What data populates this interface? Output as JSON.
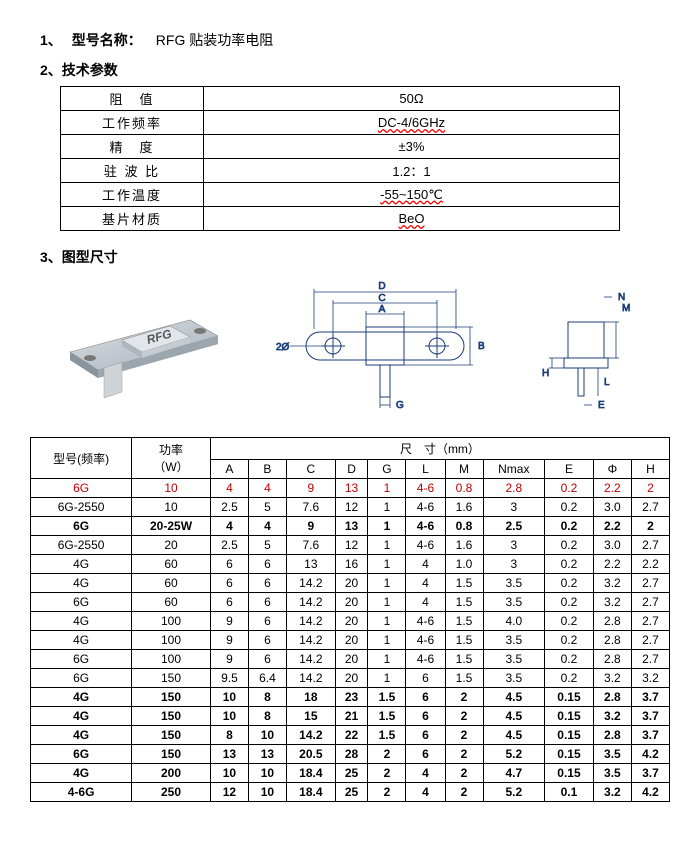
{
  "titles": {
    "s1_num": "1、",
    "s1_label": "型号名称：",
    "s1_value": "RFG 贴装功率电阻",
    "s2": "2、技术参数",
    "s3": "3、图型尺寸"
  },
  "spec": {
    "rows": [
      {
        "label": "阻　值",
        "value": "50Ω"
      },
      {
        "label": "工作频率",
        "value": "DC-4/6GHz",
        "wavy": true
      },
      {
        "label": "精　度",
        "value": "±3%"
      },
      {
        "label": "驻 波 比",
        "value": "1.2：1"
      },
      {
        "label": "工作温度",
        "value": "-55~150℃",
        "wavy": true
      },
      {
        "label": "基片材质",
        "value": "BeO",
        "wavy": true
      }
    ]
  },
  "diagram": {
    "logo": "RFG",
    "labels": {
      "A": "A",
      "B": "B",
      "C": "C",
      "D": "D",
      "G": "G",
      "L": "L",
      "M": "M",
      "N": "N",
      "E": "E",
      "H": "H",
      "phi": "2Ø"
    }
  },
  "dim": {
    "header": {
      "model": "型号(频率)",
      "power": "功率",
      "power_unit": "（W）",
      "dims": "尺　寸（mm）",
      "cols": [
        "A",
        "B",
        "C",
        "D",
        "G",
        "L",
        "M",
        "Nmax",
        "E",
        "Φ",
        "H"
      ]
    },
    "rows": [
      {
        "model": "6G",
        "power": "10",
        "vals": [
          "4",
          "4",
          "9",
          "13",
          "1",
          "4-6",
          "0.8",
          "2.8",
          "0.2",
          "2.2",
          "2"
        ],
        "red": true
      },
      {
        "model": "6G-2550",
        "power": "10",
        "vals": [
          "2.5",
          "5",
          "7.6",
          "12",
          "1",
          "4-6",
          "1.6",
          "3",
          "0.2",
          "3.0",
          "2.7"
        ]
      },
      {
        "model": "6G",
        "power": "20-25W",
        "vals": [
          "4",
          "4",
          "9",
          "13",
          "1",
          "4-6",
          "0.8",
          "2.5",
          "0.2",
          "2.2",
          "2"
        ],
        "bold": true
      },
      {
        "model": "6G-2550",
        "power": "20",
        "vals": [
          "2.5",
          "5",
          "7.6",
          "12",
          "1",
          "4-6",
          "1.6",
          "3",
          "0.2",
          "3.0",
          "2.7"
        ]
      },
      {
        "model": "4G",
        "power": "60",
        "vals": [
          "6",
          "6",
          "13",
          "16",
          "1",
          "4",
          "1.0",
          "3",
          "0.2",
          "2.2",
          "2.2"
        ]
      },
      {
        "model": "4G",
        "power": "60",
        "vals": [
          "6",
          "6",
          "14.2",
          "20",
          "1",
          "4",
          "1.5",
          "3.5",
          "0.2",
          "3.2",
          "2.7"
        ]
      },
      {
        "model": "6G",
        "power": "60",
        "vals": [
          "6",
          "6",
          "14.2",
          "20",
          "1",
          "4",
          "1.5",
          "3.5",
          "0.2",
          "3.2",
          "2.7"
        ]
      },
      {
        "model": "4G",
        "power": "100",
        "vals": [
          "9",
          "6",
          "14.2",
          "20",
          "1",
          "4-6",
          "1.5",
          "4.0",
          "0.2",
          "2.8",
          "2.7"
        ]
      },
      {
        "model": "4G",
        "power": "100",
        "vals": [
          "9",
          "6",
          "14.2",
          "20",
          "1",
          "4-6",
          "1.5",
          "3.5",
          "0.2",
          "2.8",
          "2.7"
        ]
      },
      {
        "model": "6G",
        "power": "100",
        "vals": [
          "9",
          "6",
          "14.2",
          "20",
          "1",
          "4-6",
          "1.5",
          "3.5",
          "0.2",
          "2.8",
          "2.7"
        ]
      },
      {
        "model": "6G",
        "power": "150",
        "vals": [
          "9.5",
          "6.4",
          "14.2",
          "20",
          "1",
          "6",
          "1.5",
          "3.5",
          "0.2",
          "3.2",
          "3.2"
        ]
      },
      {
        "model": "4G",
        "power": "150",
        "vals": [
          "10",
          "8",
          "18",
          "23",
          "1.5",
          "6",
          "2",
          "4.5",
          "0.15",
          "2.8",
          "3.7"
        ],
        "bold": true
      },
      {
        "model": "4G",
        "power": "150",
        "vals": [
          "10",
          "8",
          "15",
          "21",
          "1.5",
          "6",
          "2",
          "4.5",
          "0.15",
          "3.2",
          "3.7"
        ],
        "bold": true
      },
      {
        "model": "4G",
        "power": "150",
        "vals": [
          "8",
          "10",
          "14.2",
          "22",
          "1.5",
          "6",
          "2",
          "4.5",
          "0.15",
          "2.8",
          "3.7"
        ],
        "bold": true
      },
      {
        "model": "6G",
        "power": "150",
        "vals": [
          "13",
          "13",
          "20.5",
          "28",
          "2",
          "6",
          "2",
          "5.2",
          "0.15",
          "3.5",
          "4.2"
        ],
        "bold": true
      },
      {
        "model": "4G",
        "power": "200",
        "vals": [
          "10",
          "10",
          "18.4",
          "25",
          "2",
          "4",
          "2",
          "4.7",
          "0.15",
          "3.5",
          "3.7"
        ],
        "bold": true
      },
      {
        "model": "4-6G",
        "power": "250",
        "vals": [
          "12",
          "10",
          "18.4",
          "25",
          "2",
          "4",
          "2",
          "5.2",
          "0.1",
          "3.2",
          "4.2"
        ],
        "bold": true
      }
    ]
  }
}
